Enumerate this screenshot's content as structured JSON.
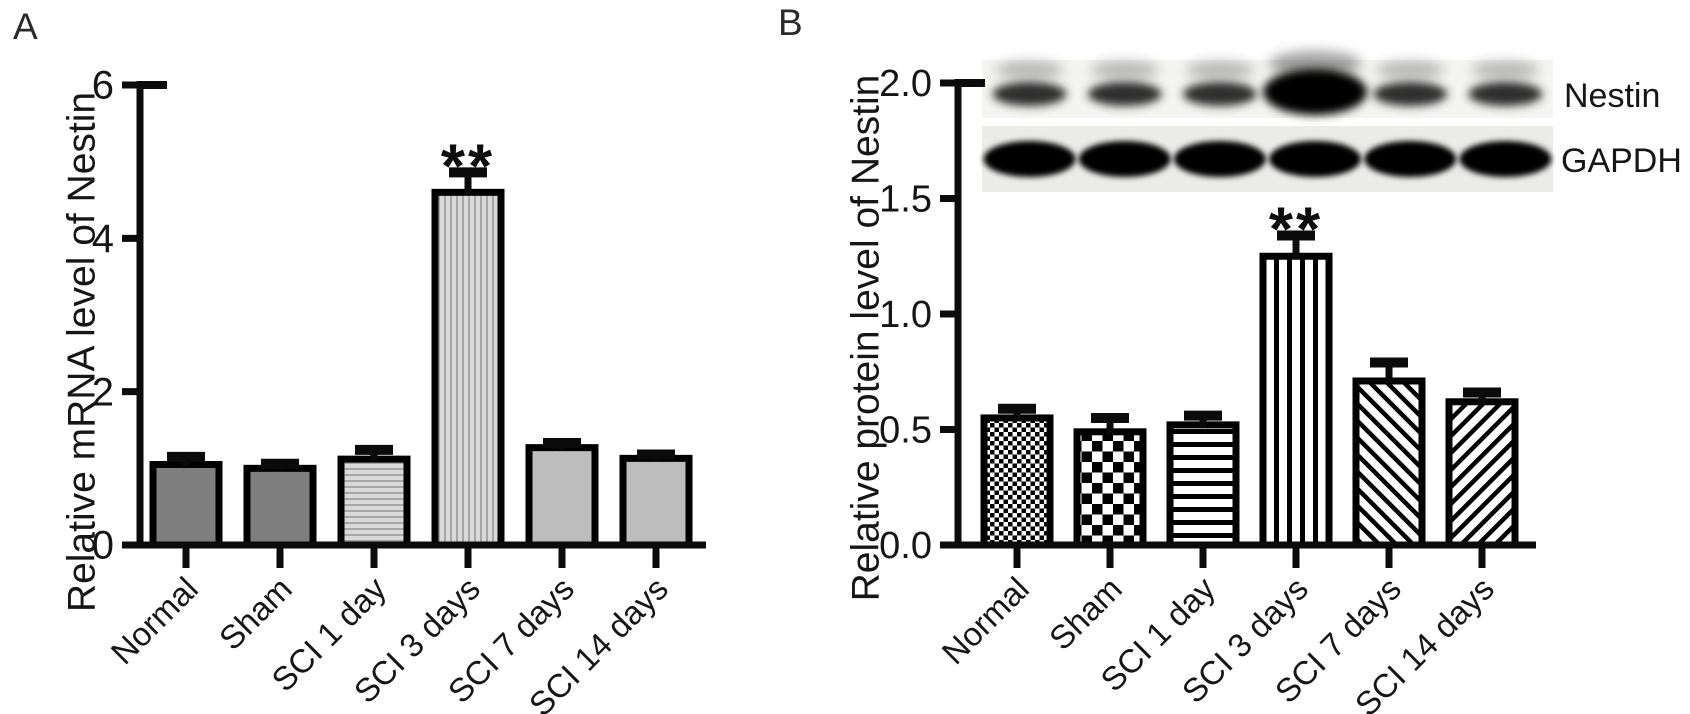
{
  "figure": {
    "background": "#ffffff",
    "ink": "#141414",
    "panel_letters": {
      "a": "A",
      "b": "B"
    }
  },
  "colors": {
    "bar_border": "#000000",
    "solid_medium_gray": "#7e7e7e",
    "solid_light_gray": "#bdbdbd",
    "pattern_light_bg": "#d9d9d9",
    "pattern_light_line": "#a6a6a6",
    "pattern_bw_line": "#000000",
    "blot_strip_top_bg": "#f4f4f1",
    "blot_strip_bottom_bg": "#ebebe8"
  },
  "chart_data": [
    {
      "type": "bar",
      "panel": "A",
      "title": "",
      "xlabel": "",
      "ylabel": "Relative mRNA level of Nestin",
      "categories": [
        "Normal",
        "Sham",
        "SCI 1 day",
        "SCI 3 days",
        "SCI 7 days",
        "SCI 14 days"
      ],
      "values": [
        1.05,
        1.0,
        1.12,
        4.6,
        1.27,
        1.13
      ],
      "errors": [
        0.1,
        0.06,
        0.12,
        0.26,
        0.06,
        0.05
      ],
      "ylim": [
        0,
        6
      ],
      "yticks": [
        0,
        2,
        4,
        6
      ],
      "ytick_labels": [
        "0",
        "2",
        "4",
        "6"
      ],
      "grid": false,
      "legend": "none",
      "bar_styles": [
        "solid-medium-gray",
        "solid-medium-gray",
        "horizontal-stripes-light",
        "vertical-stripes-light",
        "solid-light-gray",
        "solid-light-gray"
      ],
      "annotations": [
        {
          "text": "**",
          "category": "SCI 3 days",
          "meaning": "significant vs control"
        }
      ]
    },
    {
      "type": "bar",
      "panel": "B",
      "title": "",
      "xlabel": "",
      "ylabel": "Relative protein level of Nestin",
      "categories": [
        "Normal",
        "Sham",
        "SCI 1 day",
        "SCI 3 days",
        "SCI 7 days",
        "SCI 14 days"
      ],
      "values": [
        0.55,
        0.49,
        0.52,
        1.25,
        0.71,
        0.62
      ],
      "errors": [
        0.04,
        0.06,
        0.04,
        0.09,
        0.08,
        0.04
      ],
      "ylim": [
        0,
        2
      ],
      "yticks": [
        0,
        0.5,
        1,
        1.5,
        2
      ],
      "ytick_labels": [
        "0.0",
        "0.5",
        "1.0",
        "1.5",
        "2.0"
      ],
      "grid": false,
      "legend": "none",
      "bar_styles": [
        "fine-checkerboard",
        "coarse-checkerboard",
        "horizontal-stripes",
        "vertical-stripes",
        "diagonal-stripes-forward",
        "diagonal-stripes-backward"
      ],
      "annotations": [
        {
          "text": "**",
          "category": "SCI 3 days",
          "meaning": "significant vs control"
        }
      ],
      "inset_blot": {
        "lanes": [
          "Normal",
          "Sham",
          "SCI 1 day",
          "SCI 3 days",
          "SCI 7 days",
          "SCI 14 days"
        ],
        "rows": [
          {
            "label": "Nestin",
            "band_intensities": [
              "medium",
              "medium",
              "medium",
              "strong",
              "medium",
              "medium"
            ]
          },
          {
            "label": "GAPDH",
            "band_intensities": [
              "strong",
              "strong",
              "strong",
              "strong",
              "strong",
              "strong"
            ]
          }
        ]
      }
    }
  ]
}
